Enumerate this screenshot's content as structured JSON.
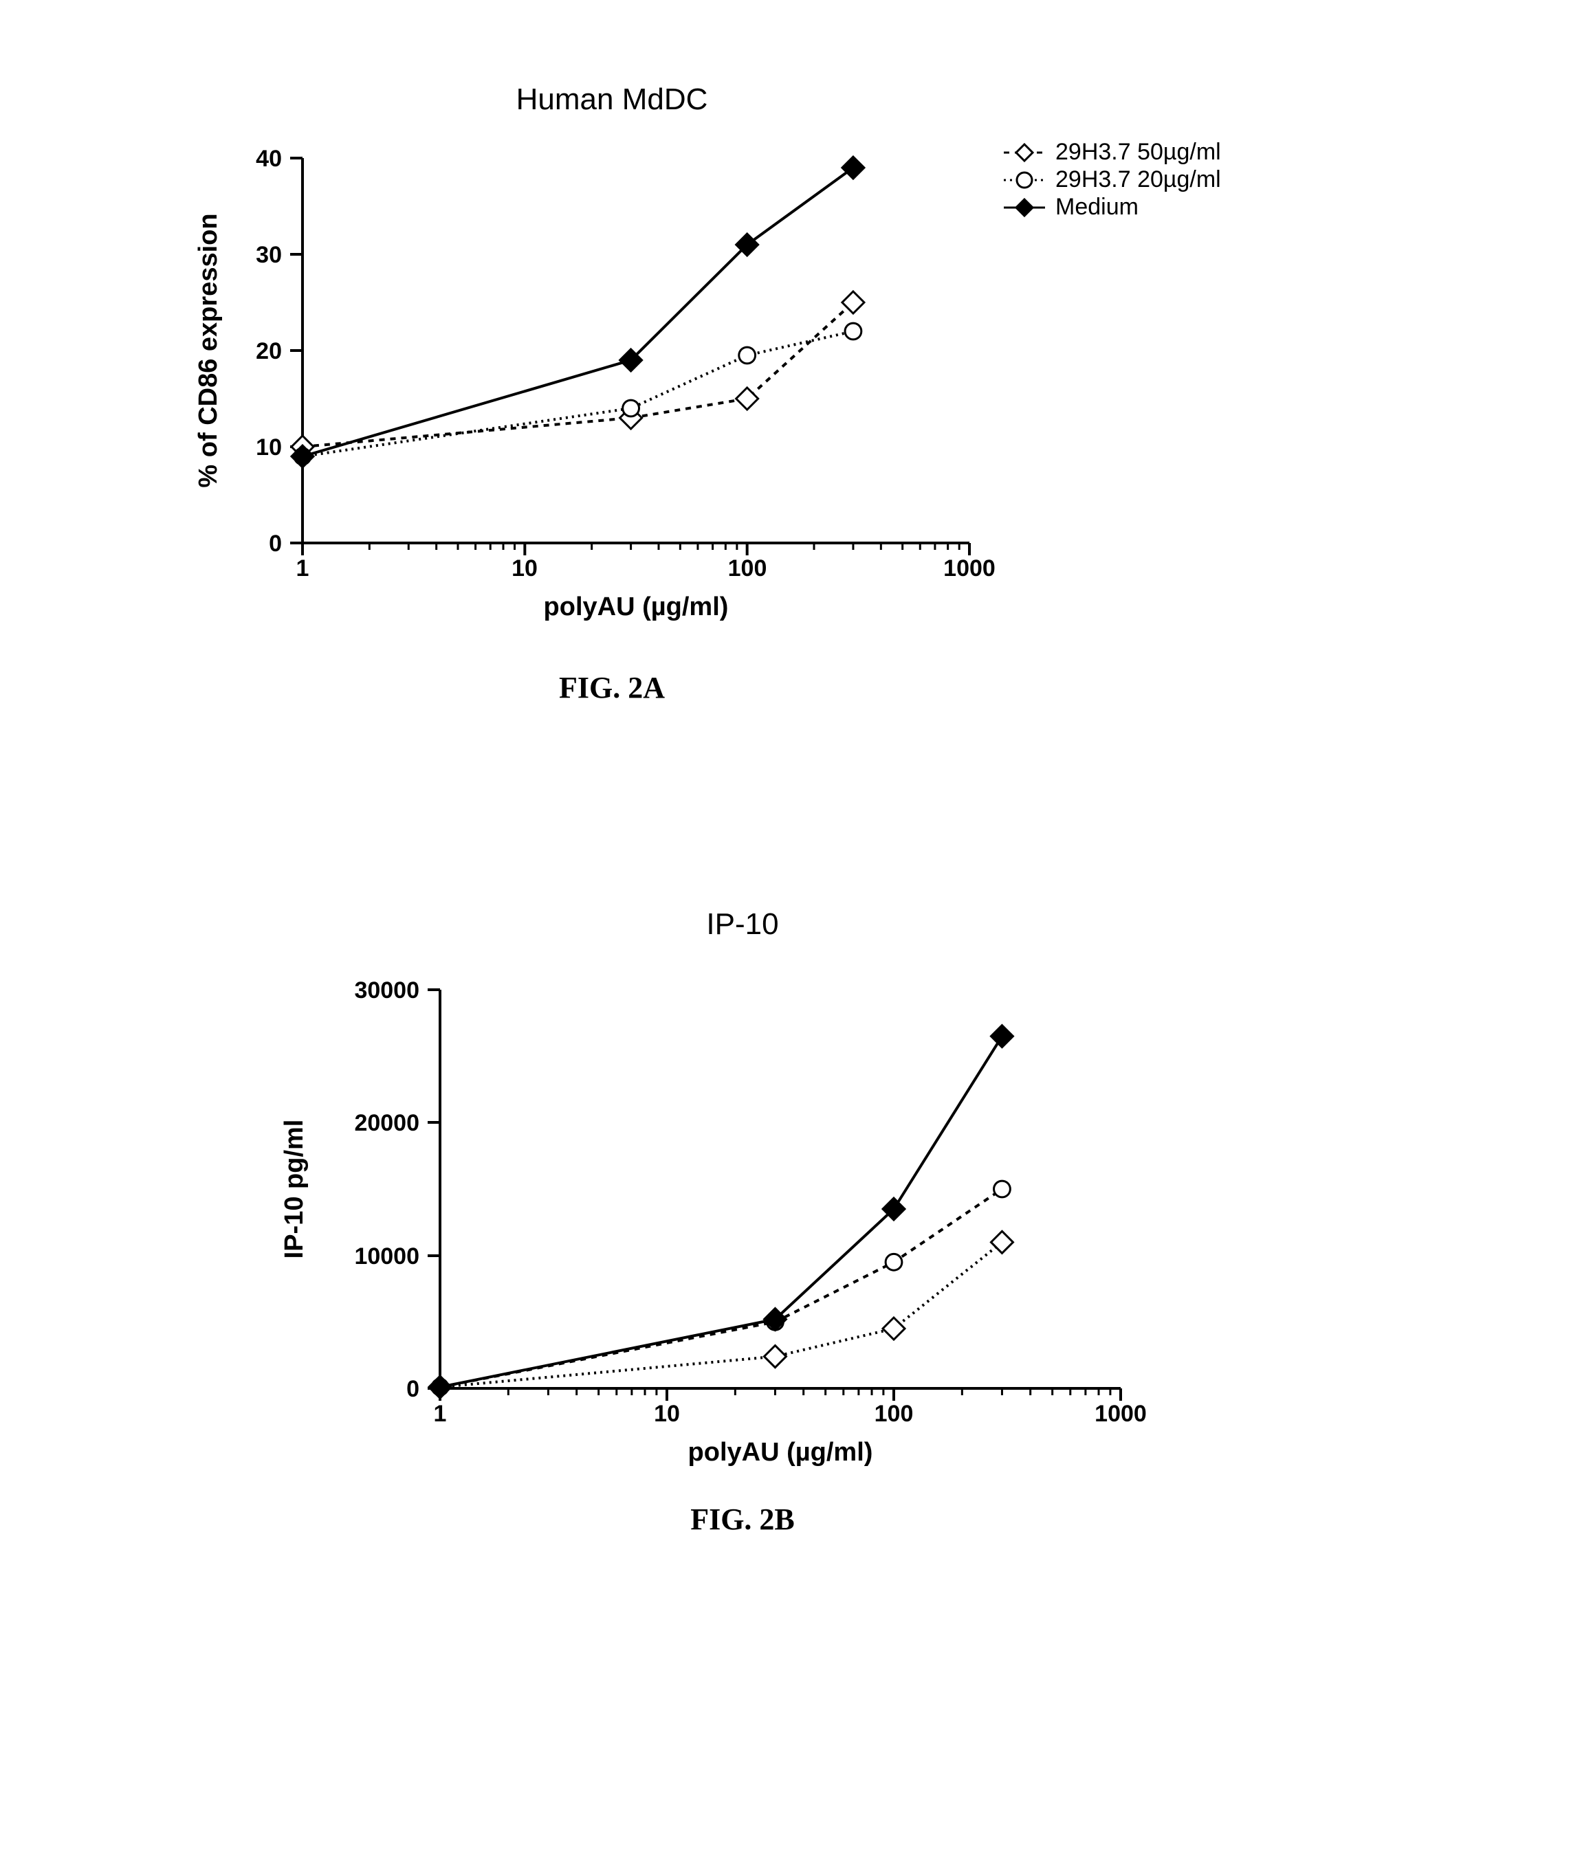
{
  "chartA": {
    "type": "line",
    "title": "Human MdDC",
    "title_fontsize": 44,
    "xlabel": "polyAU (µg/ml)",
    "ylabel": "% of CD86 expression",
    "label_fontsize": 38,
    "tick_fontsize": 34,
    "xscale": "log",
    "xlim": [
      1,
      1000
    ],
    "xticks": [
      1,
      10,
      100,
      1000
    ],
    "ylim": [
      0,
      40
    ],
    "yticks": [
      0,
      10,
      20,
      30,
      40
    ],
    "background_color": "#ffffff",
    "axis_color": "#000000",
    "axis_width": 4,
    "tick_length_major": 18,
    "tick_length_minor": 10,
    "series": [
      {
        "name": "29H3.7 50µg/ml",
        "marker": "diamond-open",
        "marker_size": 16,
        "line_dash": "8,8",
        "line_width": 4,
        "color": "#000000",
        "x": [
          1,
          30,
          100,
          300
        ],
        "y": [
          10,
          13,
          15,
          25
        ]
      },
      {
        "name": "29H3.7 20µg/ml",
        "marker": "circle-open",
        "marker_size": 14,
        "line_dash": "3,6",
        "line_width": 4,
        "color": "#000000",
        "x": [
          1,
          30,
          100,
          300
        ],
        "y": [
          9,
          14,
          19.5,
          22
        ]
      },
      {
        "name": "Medium",
        "marker": "diamond-filled",
        "marker_size": 16,
        "line_dash": "none",
        "line_width": 4,
        "color": "#000000",
        "x": [
          1,
          30,
          100,
          300
        ],
        "y": [
          9,
          19,
          31,
          39
        ]
      }
    ],
    "legend": {
      "position": "upper-right-outside",
      "items": [
        "29H3.7 50µg/ml",
        "29H3.7 20µg/ml",
        "Medium"
      ]
    },
    "fig_label": "FIG. 2A"
  },
  "chartB": {
    "type": "line",
    "title": "IP-10",
    "title_fontsize": 44,
    "xlabel": "polyAU (µg/ml)",
    "ylabel": "IP-10 pg/ml",
    "label_fontsize": 38,
    "tick_fontsize": 34,
    "xscale": "log",
    "xlim": [
      1,
      1000
    ],
    "xticks": [
      1,
      10,
      100,
      1000
    ],
    "ylim": [
      0,
      30000
    ],
    "yticks": [
      0,
      10000,
      20000,
      30000
    ],
    "background_color": "#ffffff",
    "axis_color": "#000000",
    "axis_width": 4,
    "tick_length_major": 18,
    "tick_length_minor": 10,
    "series": [
      {
        "name": "29H3.7 50µg/ml",
        "marker": "diamond-open",
        "marker_size": 16,
        "line_dash": "3,6",
        "line_width": 4,
        "color": "#000000",
        "x": [
          1,
          30,
          100,
          300
        ],
        "y": [
          100,
          2400,
          4500,
          11000
        ]
      },
      {
        "name": "29H3.7 20µg/ml",
        "marker": "circle-open",
        "marker_size": 14,
        "line_dash": "8,8",
        "line_width": 4,
        "color": "#000000",
        "x": [
          1,
          30,
          100,
          300
        ],
        "y": [
          100,
          5000,
          9500,
          15000
        ]
      },
      {
        "name": "Medium",
        "marker": "diamond-filled",
        "marker_size": 16,
        "line_dash": "none",
        "line_width": 4,
        "color": "#000000",
        "x": [
          1,
          30,
          100,
          300
        ],
        "y": [
          100,
          5200,
          13500,
          26500
        ]
      }
    ],
    "fig_label": "FIG. 2B"
  }
}
